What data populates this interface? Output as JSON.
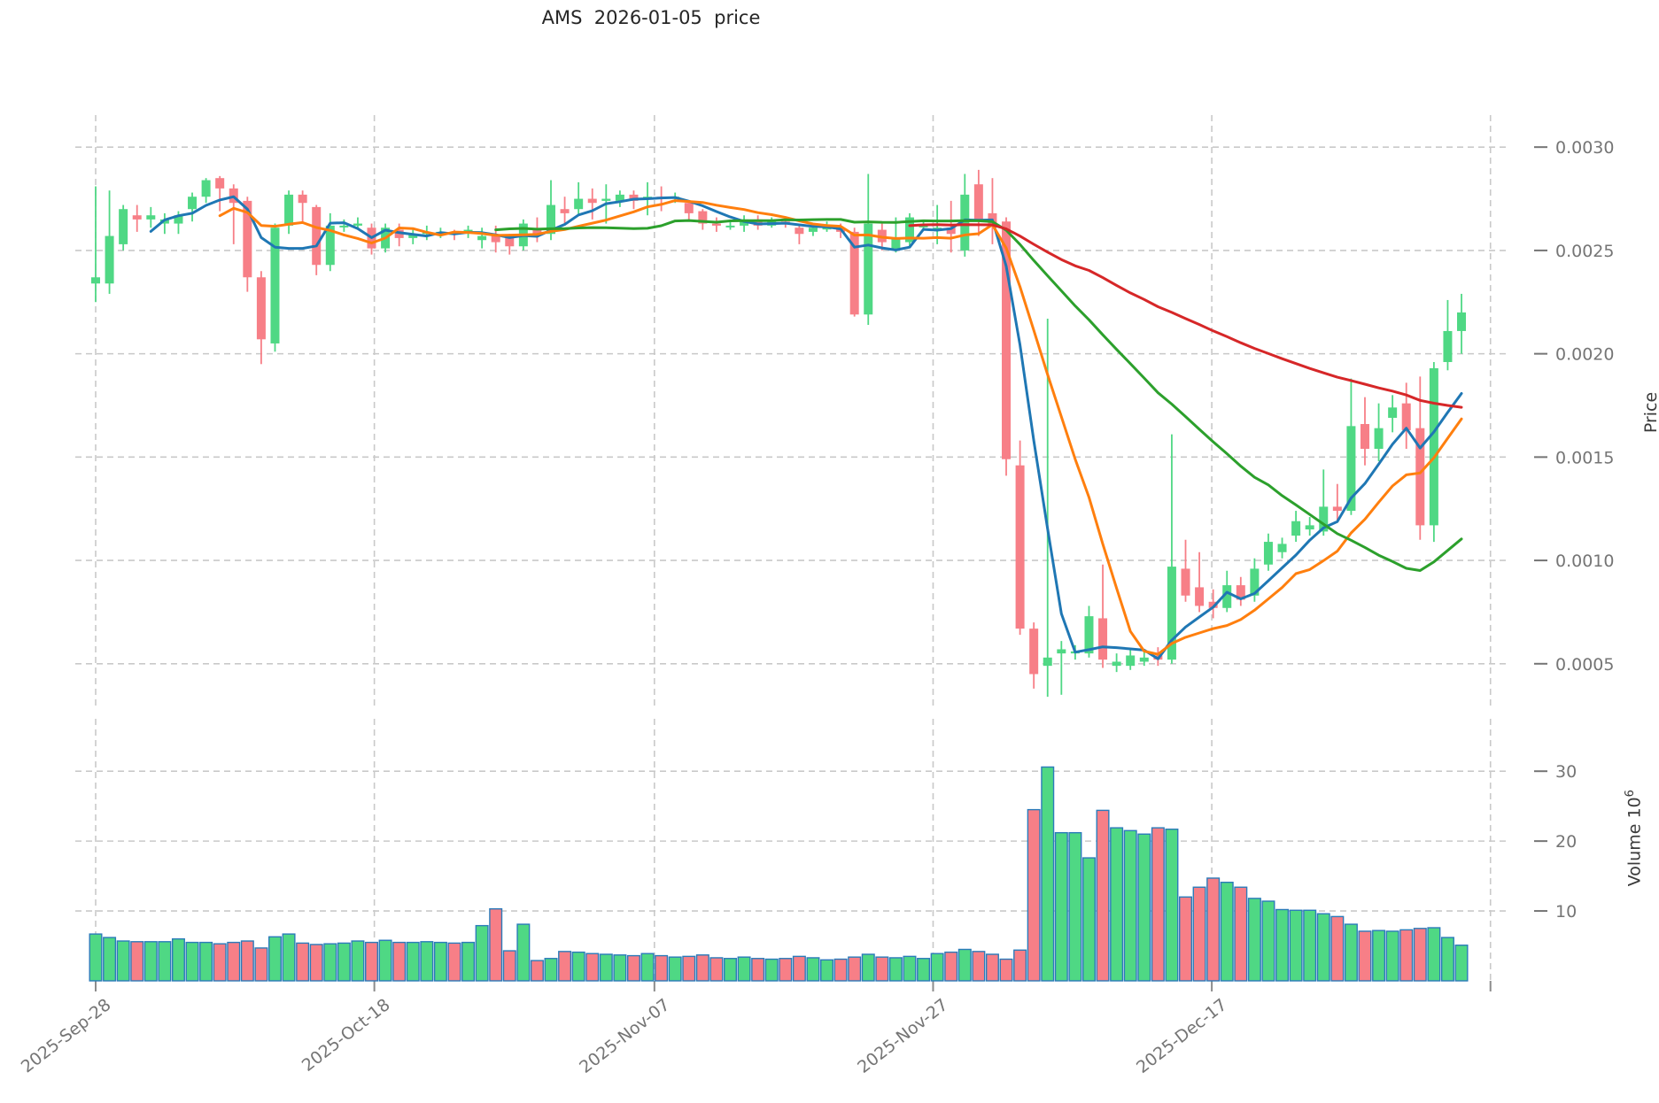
{
  "window_title": "AMS  2026-01-05  price",
  "axes": {
    "price_label": "Price",
    "volume_label_base": "Volume  10",
    "volume_label_exp": "6"
  },
  "chart_data": {
    "type": "candlestick",
    "title": "AMS  2026-01-05  price",
    "xlabel": "",
    "ylabel": "Price",
    "volume_ylabel": "Volume 10^6",
    "grid": true,
    "legend_position": "none",
    "price_ylim": [
      0.000285,
      0.003155
    ],
    "volume_ylim_millions": [
      0,
      37.5
    ],
    "price_yticks": [
      "0.0030",
      "0.0025",
      "0.0020",
      "0.0015",
      "0.0010",
      "0.0005"
    ],
    "price_ytick_values": [
      0.003,
      0.0025,
      0.002,
      0.0015,
      0.001,
      0.0005
    ],
    "volume_yticks": [
      "30",
      "20",
      "10"
    ],
    "volume_ytick_values_millions": [
      30,
      20,
      10
    ],
    "xticks": [
      {
        "label": "2025-Sep-28",
        "day_index": 0
      },
      {
        "label": "2025-Oct-18",
        "day_index": 20.2
      },
      {
        "label": "2025-Nov-07",
        "day_index": 40.5
      },
      {
        "label": "2025-Nov-27",
        "day_index": 60.7
      },
      {
        "label": "2025-Dec-17",
        "day_index": 80.9
      },
      {
        "label": "",
        "day_index": 101.1
      }
    ],
    "indicators": [
      {
        "name": "SMA5",
        "window": 5,
        "color": "#1f77b4"
      },
      {
        "name": "SMA10",
        "window": 10,
        "color": "#ff7f0e"
      },
      {
        "name": "SMA30",
        "window": 30,
        "color": "#2ca02c"
      },
      {
        "name": "SMA60",
        "window": 60,
        "color": "#d62728"
      }
    ],
    "colors": {
      "up": "#4fd884",
      "down": "#f77f87",
      "volume_edge": "#2b7bba",
      "grid": "#c9c9c9",
      "tick_text": "#757575"
    },
    "dates": [
      "2025-09-28",
      "2025-09-29",
      "2025-09-30",
      "2025-10-01",
      "2025-10-02",
      "2025-10-03",
      "2025-10-04",
      "2025-10-05",
      "2025-10-06",
      "2025-10-07",
      "2025-10-08",
      "2025-10-09",
      "2025-10-10",
      "2025-10-11",
      "2025-10-12",
      "2025-10-13",
      "2025-10-14",
      "2025-10-15",
      "2025-10-16",
      "2025-10-17",
      "2025-10-18",
      "2025-10-19",
      "2025-10-20",
      "2025-10-21",
      "2025-10-22",
      "2025-10-23",
      "2025-10-24",
      "2025-10-25",
      "2025-10-26",
      "2025-10-27",
      "2025-10-28",
      "2025-10-29",
      "2025-10-30",
      "2025-10-31",
      "2025-11-01",
      "2025-11-02",
      "2025-11-03",
      "2025-11-04",
      "2025-11-05",
      "2025-11-06",
      "2025-11-07",
      "2025-11-08",
      "2025-11-09",
      "2025-11-10",
      "2025-11-11",
      "2025-11-12",
      "2025-11-13",
      "2025-11-14",
      "2025-11-15",
      "2025-11-16",
      "2025-11-17",
      "2025-11-18",
      "2025-11-19",
      "2025-11-20",
      "2025-11-21",
      "2025-11-22",
      "2025-11-23",
      "2025-11-24",
      "2025-11-25",
      "2025-11-26",
      "2025-11-27",
      "2025-11-28",
      "2025-11-29",
      "2025-11-30",
      "2025-12-01",
      "2025-12-02",
      "2025-12-03",
      "2025-12-04",
      "2025-12-05",
      "2025-12-06",
      "2025-12-07",
      "2025-12-08",
      "2025-12-09",
      "2025-12-10",
      "2025-12-11",
      "2025-12-12",
      "2025-12-13",
      "2025-12-14",
      "2025-12-15",
      "2025-12-16",
      "2025-12-17",
      "2025-12-18",
      "2025-12-19",
      "2025-12-20",
      "2025-12-21",
      "2025-12-22",
      "2025-12-23",
      "2025-12-24",
      "2025-12-25",
      "2025-12-26",
      "2025-12-27",
      "2025-12-28",
      "2025-12-29",
      "2025-12-30",
      "2025-12-31",
      "2026-01-01",
      "2026-01-02",
      "2026-01-03",
      "2026-01-04",
      "2026-01-05"
    ],
    "open": [
      0.00234,
      0.00234,
      0.00253,
      0.00267,
      0.00265,
      0.00263,
      0.00263,
      0.0027,
      0.00276,
      0.00285,
      0.0028,
      0.00274,
      0.00237,
      0.00205,
      0.00262,
      0.00277,
      0.00271,
      0.00243,
      0.00262,
      0.00262,
      0.00261,
      0.00251,
      0.0026,
      0.00256,
      0.00258,
      0.00259,
      0.00259,
      0.00259,
      0.00255,
      0.00257,
      0.00256,
      0.00252,
      0.0026,
      0.00258,
      0.0027,
      0.0027,
      0.00275,
      0.00274,
      0.00274,
      0.00277,
      0.00275,
      0.00276,
      0.00276,
      0.00273,
      0.00269,
      0.00263,
      0.00262,
      0.00262,
      0.00265,
      0.00262,
      0.00264,
      0.00261,
      0.00259,
      0.00261,
      0.00261,
      0.00259,
      0.00219,
      0.0026,
      0.00251,
      0.00254,
      0.00262,
      0.0026,
      0.00261,
      0.0025,
      0.00282,
      0.00268,
      0.00264,
      0.00146,
      0.00067,
      0.00049,
      0.00055,
      0.00055,
      0.00055,
      0.00072,
      0.00049,
      0.00049,
      0.00051,
      0.00054,
      0.00052,
      0.00096,
      0.00087,
      0.0008,
      0.00077,
      0.00088,
      0.00083,
      0.00098,
      0.00104,
      0.00112,
      0.00115,
      0.00114,
      0.00126,
      0.00124,
      0.00166,
      0.00154,
      0.00169,
      0.00176,
      0.00164,
      0.00117,
      0.00196,
      0.00211
    ],
    "close": [
      0.00237,
      0.00257,
      0.0027,
      0.00265,
      0.00267,
      0.00265,
      0.00267,
      0.00276,
      0.00284,
      0.0028,
      0.00273,
      0.00237,
      0.00207,
      0.00261,
      0.00277,
      0.00273,
      0.00243,
      0.00262,
      0.00262,
      0.00263,
      0.00251,
      0.00261,
      0.00256,
      0.00258,
      0.00259,
      0.00259,
      0.00258,
      0.0026,
      0.00257,
      0.00254,
      0.00252,
      0.00263,
      0.00258,
      0.00272,
      0.00268,
      0.00275,
      0.00273,
      0.00275,
      0.00277,
      0.00274,
      0.00276,
      0.00275,
      0.00276,
      0.00268,
      0.00263,
      0.00262,
      0.00262,
      0.00265,
      0.00262,
      0.00264,
      0.00263,
      0.00258,
      0.00261,
      0.00261,
      0.00259,
      0.00219,
      0.00263,
      0.00254,
      0.00256,
      0.00266,
      0.00262,
      0.00261,
      0.00258,
      0.00277,
      0.00265,
      0.00263,
      0.00149,
      0.00067,
      0.00045,
      0.00053,
      0.00057,
      0.00056,
      0.00073,
      0.00052,
      0.00051,
      0.00054,
      0.00053,
      0.00052,
      0.00097,
      0.00083,
      0.00078,
      0.00077,
      0.00088,
      0.00081,
      0.00096,
      0.00109,
      0.00108,
      0.00119,
      0.00117,
      0.00126,
      0.00124,
      0.00165,
      0.00154,
      0.00164,
      0.00174,
      0.00163,
      0.00117,
      0.00193,
      0.00211,
      0.0022
    ],
    "high": [
      0.00281,
      0.00279,
      0.00272,
      0.00272,
      0.00271,
      0.00268,
      0.00269,
      0.00278,
      0.00285,
      0.00286,
      0.00282,
      0.00276,
      0.0024,
      0.00263,
      0.00279,
      0.00279,
      0.00272,
      0.00268,
      0.00265,
      0.00266,
      0.00263,
      0.00263,
      0.00263,
      0.00261,
      0.00262,
      0.00261,
      0.0026,
      0.00262,
      0.00261,
      0.00262,
      0.00258,
      0.00265,
      0.00266,
      0.00284,
      0.00276,
      0.00283,
      0.0028,
      0.00282,
      0.00279,
      0.00279,
      0.00283,
      0.00281,
      0.00278,
      0.00274,
      0.0027,
      0.00266,
      0.00265,
      0.00267,
      0.00267,
      0.00266,
      0.00266,
      0.00262,
      0.00263,
      0.00264,
      0.00263,
      0.00261,
      0.00287,
      0.00263,
      0.00266,
      0.00268,
      0.00264,
      0.00272,
      0.00274,
      0.00287,
      0.00289,
      0.00285,
      0.00266,
      0.00158,
      0.0007,
      0.00217,
      0.00061,
      0.00059,
      0.00078,
      0.00098,
      0.00055,
      0.00057,
      0.00056,
      0.00058,
      0.00161,
      0.0011,
      0.00104,
      0.00086,
      0.00095,
      0.00092,
      0.00101,
      0.00113,
      0.00111,
      0.00124,
      0.00121,
      0.00144,
      0.00137,
      0.00188,
      0.00179,
      0.00176,
      0.0018,
      0.00186,
      0.00189,
      0.00196,
      0.00226,
      0.00229
    ],
    "low": [
      0.00225,
      0.00229,
      0.0025,
      0.00259,
      0.00261,
      0.00258,
      0.00258,
      0.00264,
      0.00273,
      0.00269,
      0.00253,
      0.0023,
      0.00195,
      0.00201,
      0.00258,
      0.00264,
      0.00238,
      0.0024,
      0.00259,
      0.0026,
      0.00248,
      0.00249,
      0.00252,
      0.00253,
      0.00255,
      0.00256,
      0.00255,
      0.00256,
      0.00251,
      0.00249,
      0.00248,
      0.0025,
      0.00254,
      0.00255,
      0.00262,
      0.00267,
      0.00265,
      0.00263,
      0.00271,
      0.0027,
      0.00267,
      0.00269,
      0.00273,
      0.00264,
      0.0026,
      0.00259,
      0.0026,
      0.00259,
      0.0026,
      0.00261,
      0.00261,
      0.00253,
      0.00257,
      0.00259,
      0.00256,
      0.00218,
      0.00214,
      0.0025,
      0.00249,
      0.00252,
      0.0026,
      0.00253,
      0.00249,
      0.00247,
      0.00257,
      0.00253,
      0.00141,
      0.00064,
      0.00038,
      0.00034,
      0.00035,
      0.00052,
      0.00053,
      0.00048,
      0.00046,
      0.00047,
      0.00049,
      0.00049,
      0.0005,
      0.0008,
      0.00075,
      0.00072,
      0.00075,
      0.00078,
      0.0008,
      0.00095,
      0.00101,
      0.00109,
      0.00112,
      0.00112,
      0.00119,
      0.00122,
      0.00146,
      0.00148,
      0.00162,
      0.00154,
      0.0011,
      0.00109,
      0.00192,
      0.002
    ],
    "volume_millions": [
      6.7,
      6.2,
      5.7,
      5.6,
      5.6,
      5.6,
      6.0,
      5.5,
      5.5,
      5.3,
      5.5,
      5.7,
      4.7,
      6.3,
      6.7,
      5.4,
      5.2,
      5.3,
      5.4,
      5.7,
      5.5,
      5.8,
      5.5,
      5.5,
      5.6,
      5.5,
      5.4,
      5.5,
      7.9,
      10.3,
      4.3,
      8.1,
      2.9,
      3.2,
      4.2,
      4.1,
      3.9,
      3.8,
      3.7,
      3.6,
      3.9,
      3.6,
      3.4,
      3.5,
      3.7,
      3.3,
      3.2,
      3.4,
      3.2,
      3.1,
      3.2,
      3.5,
      3.3,
      3.0,
      3.1,
      3.4,
      3.8,
      3.4,
      3.3,
      3.5,
      3.2,
      3.9,
      4.1,
      4.5,
      4.2,
      3.8,
      3.1,
      4.4,
      24.5,
      30.6,
      21.2,
      21.2,
      17.6,
      24.4,
      21.9,
      21.5,
      21.0,
      21.9,
      21.7,
      12.0,
      13.4,
      14.7,
      14.1,
      13.4,
      11.8,
      11.4,
      10.2,
      10.1,
      10.1,
      9.6,
      9.2,
      8.1,
      7.1,
      7.2,
      7.1,
      7.3,
      7.5,
      7.6,
      6.2,
      5.1
    ]
  }
}
